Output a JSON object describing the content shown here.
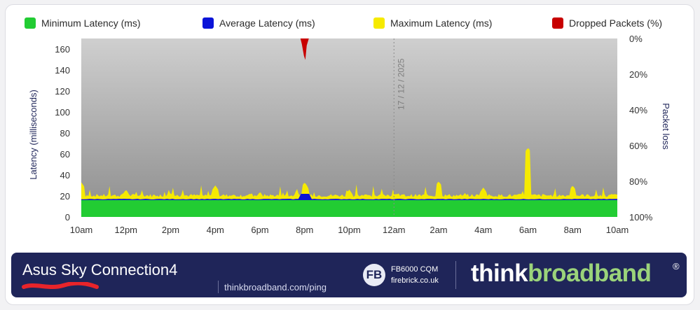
{
  "legend": [
    {
      "label": "Minimum Latency (ms)",
      "color": "#22cc33"
    },
    {
      "label": "Average Latency (ms)",
      "color": "#0b14d8"
    },
    {
      "label": "Maximum Latency (ms)",
      "color": "#f6ea00"
    },
    {
      "label": "Dropped Packets (%)",
      "color": "#c80000"
    }
  ],
  "footer": {
    "title": "Asus Sky Connection4",
    "url": "thinkbroadband.com/ping",
    "sponsor_logo": "FB",
    "sponsor_model": "FB6000 CQM",
    "sponsor_site": "firebrick.co.uk",
    "brand_think": "think",
    "brand_broadband": "broadband",
    "brand_reg": "®",
    "background_color": "#1f2559"
  },
  "chart_data": {
    "type": "area",
    "ylabel": "Latency (milliseconds)",
    "y2label": "Packet loss",
    "ylim": [
      0,
      170
    ],
    "y_ticks": [
      "0",
      "20",
      "40",
      "60",
      "80",
      "100",
      "120",
      "140",
      "160"
    ],
    "y2_ticks": [
      "0%",
      "20%",
      "40%",
      "60%",
      "80%",
      "100%"
    ],
    "x_ticks": [
      "10am",
      "12pm",
      "2pm",
      "4pm",
      "6pm",
      "8pm",
      "10pm",
      "12am",
      "2am",
      "4am",
      "6am",
      "8am",
      "10am"
    ],
    "date_marker": {
      "x": "12am",
      "label": "17 / 12 / 2025"
    },
    "background_color": "#bdbdbd",
    "series": [
      {
        "name": "Minimum Latency (ms)",
        "color": "#22cc33",
        "baseline": 16,
        "unit": "ms"
      },
      {
        "name": "Average Latency (ms)",
        "color": "#0b14d8",
        "baseline": 17,
        "unit": "ms"
      },
      {
        "name": "Maximum Latency (ms)",
        "color": "#f6ea00",
        "baseline": 19,
        "unit": "ms",
        "spikes": [
          {
            "x": "10am",
            "y": 33
          },
          {
            "x": "12pm",
            "y": 26
          },
          {
            "x": "2pm",
            "y": 23
          },
          {
            "x": "4pm",
            "y": 30
          },
          {
            "x": "6pm",
            "y": 24
          },
          {
            "x": "8pm",
            "y": 33
          },
          {
            "x": "10pm",
            "y": 26
          },
          {
            "x": "2am",
            "y": 34
          },
          {
            "x": "4am",
            "y": 28
          },
          {
            "x": "6am",
            "y": 66
          },
          {
            "x": "8am",
            "y": 30
          }
        ]
      },
      {
        "name": "Dropped Packets (%)",
        "color": "#c80000",
        "unit": "%",
        "events": [
          {
            "x": "8pm",
            "y": 12
          }
        ]
      }
    ]
  }
}
